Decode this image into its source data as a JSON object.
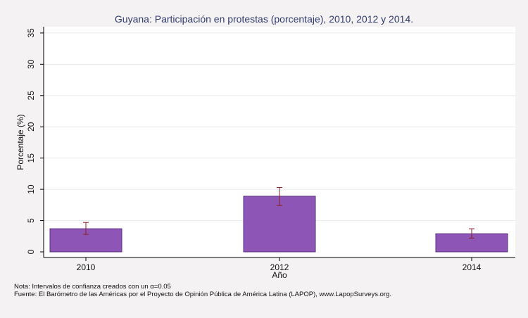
{
  "chart_data": {
    "type": "bar",
    "title": "Guyana: Participación en protestas (porcentaje), 2010, 2012 y 2014.",
    "xlabel": "Año",
    "ylabel": "Porcentaje (%)",
    "categories": [
      "2010",
      "2012",
      "2014"
    ],
    "values": [
      3.7,
      8.9,
      2.9
    ],
    "ci_low": [
      2.8,
      7.4,
      2.2
    ],
    "ci_high": [
      4.7,
      10.3,
      3.7
    ],
    "ylim": [
      0,
      36
    ],
    "yticks": [
      0,
      5,
      10,
      15,
      20,
      25,
      30,
      35
    ],
    "grid": true,
    "colors": {
      "bar": "#8d56b6",
      "bar_stroke": "#5a2f7e",
      "error": "#8b1f1f"
    }
  },
  "footer": {
    "note_prefix": "Nota: Intervalos de confianza creados con un ",
    "note_alpha": "α",
    "note_suffix": "=0.05",
    "source": "Fuente: El Barómetro de las Américas por el Proyecto de Opinión Pública de América Latina (LAPOP), www.LapopSurveys.org."
  }
}
